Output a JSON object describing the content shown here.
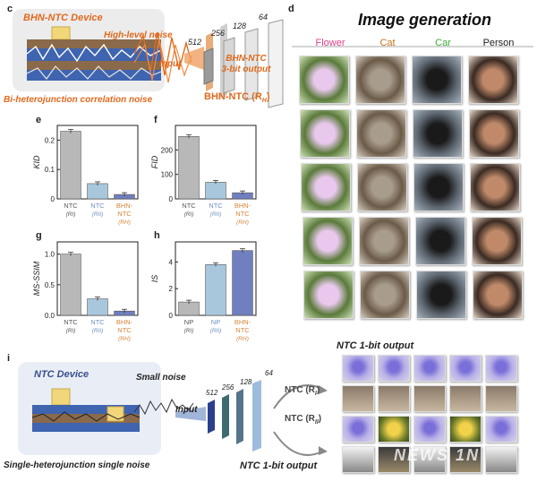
{
  "panels": {
    "c": "c",
    "d": "d",
    "e": "e",
    "f": "f",
    "g": "g",
    "h": "h",
    "i": "i"
  },
  "panel_c": {
    "device_title": "BHN-NTC Device",
    "high_noise": "High-level noise",
    "input": "Input",
    "layer_sizes": [
      "512",
      "256",
      "128",
      "64"
    ],
    "output_line1": "BHN-NTC",
    "output_line2": "3-bit output",
    "model_label": "BHN-NTC (R",
    "model_sub": "H",
    "bottom_caption": "Bi-heterojunction correlation noise"
  },
  "panel_d": {
    "title": "Image generation",
    "categories": [
      {
        "label": "Flower",
        "color": "#e0408a"
      },
      {
        "label": "Cat",
        "color": "#c9711f"
      },
      {
        "label": "Car",
        "color": "#3cae3c"
      },
      {
        "label": "Person",
        "color": "#222222"
      }
    ]
  },
  "panel_i": {
    "device_title": "NTC Device",
    "small_noise": "Small noise",
    "input": "Input",
    "layer_sizes": [
      "512",
      "256",
      "128",
      "64"
    ],
    "model_top": "NTC (R",
    "model_top_sub": "I",
    "model_bottom": "NTC (R",
    "model_bottom_sub": "II",
    "out_top": "NTC 1-bit output",
    "out_bottom": "NTC 1-bit output",
    "bottom_caption": "Single-heterojunction single noise",
    "watermark": "NEWS 1N"
  },
  "chart_data": [
    {
      "id": "e",
      "type": "bar",
      "ylabel": "KID",
      "ylim": [
        0,
        0.25
      ],
      "yticks": [
        "0",
        "0.1",
        "0.2"
      ],
      "categories": [
        {
          "line1": "NTC",
          "line2": "(RI)",
          "color": "#555"
        },
        {
          "line1": "NTC",
          "line2": "(RII)",
          "color": "#6f8fc2"
        },
        {
          "line1": "BHN-",
          "line2": "NTC",
          "line3": "(RH)",
          "color": "#d8843a"
        }
      ],
      "values": [
        0.23,
        0.052,
        0.015
      ],
      "bar_colors": [
        "#b8b8b8",
        "#a9c7dc",
        "#6f7fbf"
      ]
    },
    {
      "id": "f",
      "type": "bar",
      "ylabel": "FID",
      "ylim": [
        0,
        300
      ],
      "yticks": [
        "0",
        "100",
        "200"
      ],
      "categories": [
        {
          "line1": "NTC",
          "line2": "(RI)",
          "color": "#555"
        },
        {
          "line1": "NTC",
          "line2": "(RII)",
          "color": "#6f8fc2"
        },
        {
          "line1": "BHN-",
          "line2": "NTC",
          "line3": "(RH)",
          "color": "#d8843a"
        }
      ],
      "values": [
        255,
        68,
        25
      ],
      "bar_colors": [
        "#b8b8b8",
        "#a9c7dc",
        "#6f7fbf"
      ]
    },
    {
      "id": "g",
      "type": "bar",
      "ylabel": "MS-SSIM",
      "ylim": [
        0,
        1.2
      ],
      "yticks": [
        "0.0",
        "0.5",
        "1.0"
      ],
      "categories": [
        {
          "line1": "NTC",
          "line2": "(RI)",
          "color": "#555"
        },
        {
          "line1": "NTC",
          "line2": "(RII)",
          "color": "#6f8fc2"
        },
        {
          "line1": "BHN-",
          "line2": "NTC",
          "line3": "(RH)",
          "color": "#d8843a"
        }
      ],
      "values": [
        1.0,
        0.27,
        0.07
      ],
      "bar_colors": [
        "#b8b8b8",
        "#a9c7dc",
        "#6f7fbf"
      ]
    },
    {
      "id": "h",
      "type": "bar",
      "ylabel": "IS",
      "ylim": [
        0,
        5.5
      ],
      "yticks": [
        "0",
        "2",
        "4"
      ],
      "categories": [
        {
          "line1": "NP",
          "line2": "(RI)",
          "color": "#555"
        },
        {
          "line1": "NP",
          "line2": "(RII)",
          "color": "#6f8fc2"
        },
        {
          "line1": "BHN-",
          "line2": "NTC",
          "line3": "(RH)",
          "color": "#d8843a"
        }
      ],
      "values": [
        1.0,
        3.8,
        4.85
      ],
      "bar_colors": [
        "#b8b8b8",
        "#a9c7dc",
        "#6f7fbf"
      ]
    }
  ]
}
